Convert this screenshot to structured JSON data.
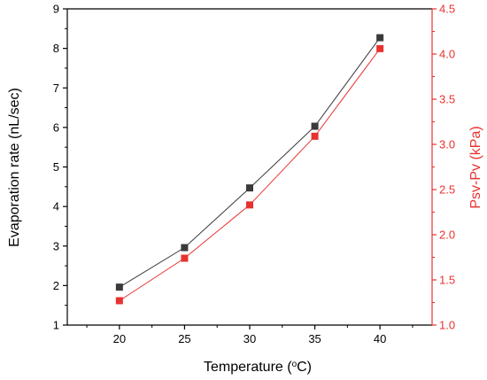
{
  "chart_data": {
    "type": "line",
    "x": [
      20,
      25,
      30,
      35,
      40
    ],
    "xlabel": "Temperature (",
    "xlabel_sup": "o",
    "xlabel_suffix": "C)",
    "xlim": [
      16,
      44
    ],
    "xticks": [
      "20",
      "25",
      "30",
      "35",
      "40"
    ],
    "ylabel_left": "Evaporation rate (nL/sec)",
    "ylim_left": [
      1,
      9
    ],
    "yticks_left": [
      "1",
      "2",
      "3",
      "4",
      "5",
      "6",
      "7",
      "8",
      "9"
    ],
    "ylabel_right": "Psv-Pv (kPa)",
    "ylim_right": [
      1.0,
      4.5
    ],
    "yticks_right": [
      "1.0",
      "1.5",
      "2.0",
      "2.5",
      "3.0",
      "3.5",
      "4.0",
      "4.5"
    ],
    "grid": false,
    "legend": "none",
    "series": [
      {
        "axis": "left",
        "color": "#3a3a3a",
        "marker": "square",
        "values": [
          1.96,
          2.96,
          4.47,
          6.03,
          8.27
        ]
      },
      {
        "axis": "right",
        "color": "#e8322f",
        "marker": "square",
        "values": [
          1.27,
          1.74,
          2.33,
          3.09,
          4.06
        ]
      }
    ]
  },
  "colors": {
    "axis_left": "#000000",
    "axis_right": "#e8322f"
  }
}
